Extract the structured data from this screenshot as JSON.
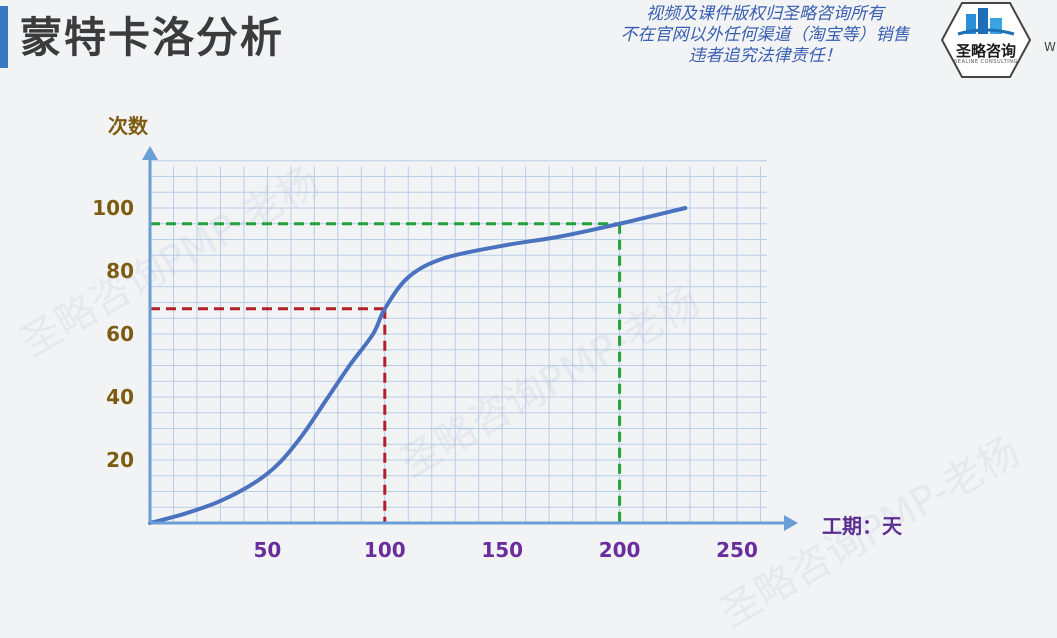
{
  "header": {
    "title": "蒙特卡洛分析",
    "copyright_lines": [
      "视频及课件版权归圣略咨询所有",
      "不在官网以外任何渠道（淘宝等）销售",
      "违者追究法律责任！"
    ],
    "logo_text": "圣略咨询",
    "logo_subtext": "SEALINE CONSULTING",
    "edge_text": "W"
  },
  "watermark": "圣略咨询PMP-老杨",
  "colors": {
    "curve": "#4a72bf",
    "axis": "#6a9ed6",
    "grid": "#b9cde8",
    "ytick": "#7d5c12",
    "xtick": "#6a2d9e",
    "ref_red": "#b0202a",
    "ref_green": "#23a23a"
  },
  "chart_data": {
    "type": "line",
    "ylabel": "次数",
    "xlabel": "工期：天",
    "xlim": [
      0,
      250
    ],
    "ylim": [
      0,
      110
    ],
    "xticks": [
      50,
      100,
      150,
      200,
      250
    ],
    "yticks": [
      20,
      40,
      60,
      80,
      100
    ],
    "grid": true,
    "series": [
      {
        "x": [
          0,
          15,
          30,
          45,
          55,
          65,
          75,
          85,
          95,
          100,
          110,
          125,
          150,
          175,
          200,
          228
        ],
        "values": [
          0,
          3,
          7,
          13,
          19,
          28,
          39,
          50,
          60,
          68,
          78,
          84,
          88,
          91,
          95,
          100
        ]
      }
    ],
    "reference_lines": [
      {
        "x": 100,
        "y": 68,
        "color": "red"
      },
      {
        "x": 200,
        "y": 95,
        "color": "green"
      }
    ]
  }
}
